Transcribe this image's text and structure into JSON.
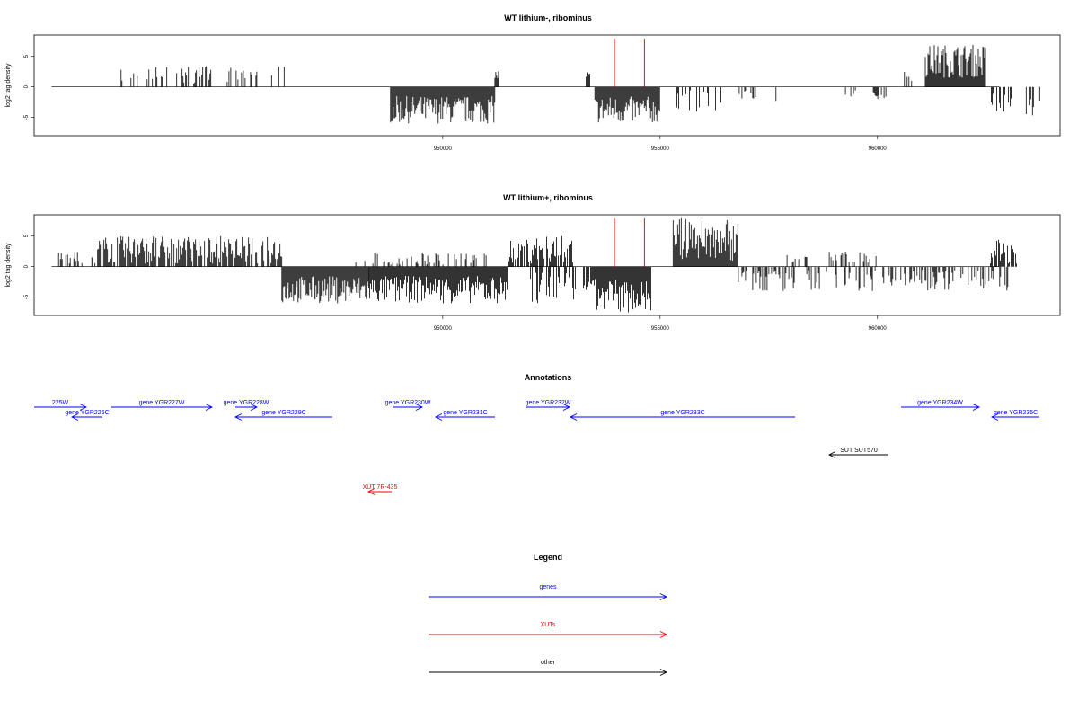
{
  "chart_data": [
    {
      "type": "bar",
      "title": "WT lithium-, ribominus",
      "ylabel": "log2 tag density",
      "ylim": [
        -8,
        8.5
      ],
      "xlim": [
        940600,
        964200
      ],
      "x_ticks": [
        950000,
        955000,
        960000
      ],
      "x_tick_labels": [
        "950000",
        "955000",
        "960000"
      ],
      "y_ticks": [
        -5,
        0,
        5
      ],
      "y_tick_labels": [
        "-5",
        "0",
        "5"
      ],
      "baseline": [
        941000,
        962800
      ],
      "marker_color": "#ff0000",
      "marker_x": [
        953950,
        954640
      ],
      "signal_segments": [
        {
          "start": 942600,
          "end": 943300,
          "min": 0.5,
          "max": 3,
          "density": 0.3
        },
        {
          "start": 943300,
          "end": 944700,
          "min": 0.5,
          "max": 3.5,
          "density": 0.3
        },
        {
          "start": 945000,
          "end": 945800,
          "min": 0.5,
          "max": 3.5,
          "density": 0.4
        },
        {
          "start": 946000,
          "end": 946400,
          "min": 1,
          "max": 4,
          "density": 0.2
        },
        {
          "start": 948800,
          "end": 951200,
          "min": -6,
          "max": -1.5,
          "density": 1
        },
        {
          "start": 951200,
          "end": 951300,
          "min": 1,
          "max": 2.8,
          "density": 1
        },
        {
          "start": 953300,
          "end": 953400,
          "min": 0.5,
          "max": 2.8,
          "density": 1
        },
        {
          "start": 953500,
          "end": 955000,
          "min": -6,
          "max": -1.5,
          "density": 1
        },
        {
          "start": 955000,
          "end": 955000,
          "min": 0,
          "max": 0,
          "density": 0
        },
        {
          "start": 955200,
          "end": 956400,
          "min": -4.5,
          "max": -0.5,
          "density": 0.18
        },
        {
          "start": 956800,
          "end": 957200,
          "min": -2,
          "max": -0.5,
          "density": 0.3
        },
        {
          "start": 957500,
          "end": 958000,
          "min": -3,
          "max": -0.5,
          "density": 0.2
        },
        {
          "start": 959200,
          "end": 959500,
          "min": -2,
          "max": -0.5,
          "density": 0.4
        },
        {
          "start": 959800,
          "end": 960200,
          "min": -2,
          "max": -0.5,
          "density": 0.4
        },
        {
          "start": 960600,
          "end": 960800,
          "min": 1,
          "max": 2.5,
          "density": 0.3
        },
        {
          "start": 961100,
          "end": 962500,
          "min": 1.5,
          "max": 7,
          "density": 1
        },
        {
          "start": 962600,
          "end": 963100,
          "min": -5,
          "max": -1,
          "density": 0.5
        },
        {
          "start": 963400,
          "end": 963800,
          "min": -5,
          "max": -1,
          "density": 0.5
        }
      ]
    },
    {
      "type": "bar",
      "title": "WT lithium+, ribominus",
      "ylabel": "log2 tag density",
      "ylim": [
        -8,
        8.5
      ],
      "xlim": [
        940600,
        964200
      ],
      "x_ticks": [
        950000,
        955000,
        960000
      ],
      "x_tick_labels": [
        "950000",
        "955000",
        "960000"
      ],
      "y_ticks": [
        -5,
        0,
        5
      ],
      "y_tick_labels": [
        "-5",
        "0",
        "5"
      ],
      "baseline": [
        941000,
        962800
      ],
      "marker_color": "#ff0000",
      "marker_x": [
        953950,
        954640
      ],
      "signal_segments": [
        {
          "start": 941100,
          "end": 942000,
          "min": 0.5,
          "max": 2.5,
          "density": 0.3
        },
        {
          "start": 942000,
          "end": 946300,
          "min": 0.5,
          "max": 5,
          "density": 0.8
        },
        {
          "start": 946300,
          "end": 948300,
          "min": -6,
          "max": -1.5,
          "density": 1
        },
        {
          "start": 948300,
          "end": 951500,
          "min": -6,
          "max": -1.5,
          "density": 1
        },
        {
          "start": 948000,
          "end": 951000,
          "min": 0.3,
          "max": 2.5,
          "density": 0.3
        },
        {
          "start": 951500,
          "end": 953000,
          "min": 0.5,
          "max": 5,
          "density": 0.6
        },
        {
          "start": 952000,
          "end": 953400,
          "min": -6,
          "max": -1,
          "density": 0.6
        },
        {
          "start": 953400,
          "end": 954800,
          "min": -7.5,
          "max": -2,
          "density": 1
        },
        {
          "start": 955300,
          "end": 956800,
          "min": 1,
          "max": 8,
          "density": 1
        },
        {
          "start": 956800,
          "end": 957900,
          "min": -4,
          "max": -0.5,
          "density": 0.5
        },
        {
          "start": 957900,
          "end": 960000,
          "min": 0.5,
          "max": 2.5,
          "density": 0.25
        },
        {
          "start": 957900,
          "end": 960000,
          "min": -4,
          "max": -0.5,
          "density": 0.25
        },
        {
          "start": 960000,
          "end": 963000,
          "min": -4,
          "max": -0.5,
          "density": 0.4
        },
        {
          "start": 962600,
          "end": 963200,
          "min": 0.5,
          "max": 4.5,
          "density": 0.7
        },
        {
          "start": 963200,
          "end": 962800,
          "min": 0.5,
          "max": 4.5,
          "density": 0.7
        }
      ]
    }
  ],
  "annotations": {
    "title": "Annotations",
    "items": [
      {
        "label": "225W",
        "x1": 38,
        "x2": 96,
        "row": 0,
        "dir": "right",
        "color": "#0000ff"
      },
      {
        "label": "gene YGR226C",
        "x1": 80,
        "x2": 114,
        "row": 1,
        "dir": "left",
        "color": "#0000ff"
      },
      {
        "label": "gene YGR227W",
        "x1": 124,
        "x2": 236,
        "row": 0,
        "dir": "right",
        "color": "#0000ff"
      },
      {
        "label": "gene YGR228W",
        "x1": 262,
        "x2": 286,
        "row": 0,
        "dir": "right",
        "color": "#0000ff"
      },
      {
        "label": "gene YGR229C",
        "x1": 262,
        "x2": 370,
        "row": 1,
        "dir": "left",
        "color": "#0000ff"
      },
      {
        "label": "gene YGR230W",
        "x1": 438,
        "x2": 470,
        "row": 0,
        "dir": "right",
        "color": "#0000ff"
      },
      {
        "label": "gene YGR231C",
        "x1": 485,
        "x2": 551,
        "row": 1,
        "dir": "left",
        "color": "#0000ff"
      },
      {
        "label": "gene YGR232W",
        "x1": 586,
        "x2": 634,
        "row": 0,
        "dir": "right",
        "color": "#0000ff"
      },
      {
        "label": "gene YGR233C",
        "x1": 635,
        "x2": 885,
        "row": 1,
        "dir": "left",
        "color": "#0000ff"
      },
      {
        "label": "gene YGR234W",
        "x1": 1003,
        "x2": 1090,
        "row": 0,
        "dir": "right",
        "color": "#0000ff"
      },
      {
        "label": "gene YGR235C",
        "x1": 1104,
        "x2": 1157,
        "row": 1,
        "dir": "left",
        "color": "#0000ff"
      },
      {
        "label": "SUT SUT570",
        "x1": 923,
        "x2": 989,
        "row": 2,
        "dir": "left",
        "color": "#000000"
      },
      {
        "label": "XUT 7R-435",
        "x1": 410,
        "x2": 436,
        "row": 3,
        "dir": "left",
        "color": "#ff0000"
      }
    ]
  },
  "legend": {
    "title": "Legend",
    "items": [
      {
        "label": "genes",
        "color": "#0000ff"
      },
      {
        "label": "XUTs",
        "color": "#ff0000"
      },
      {
        "label": "other",
        "color": "#000000"
      }
    ]
  }
}
